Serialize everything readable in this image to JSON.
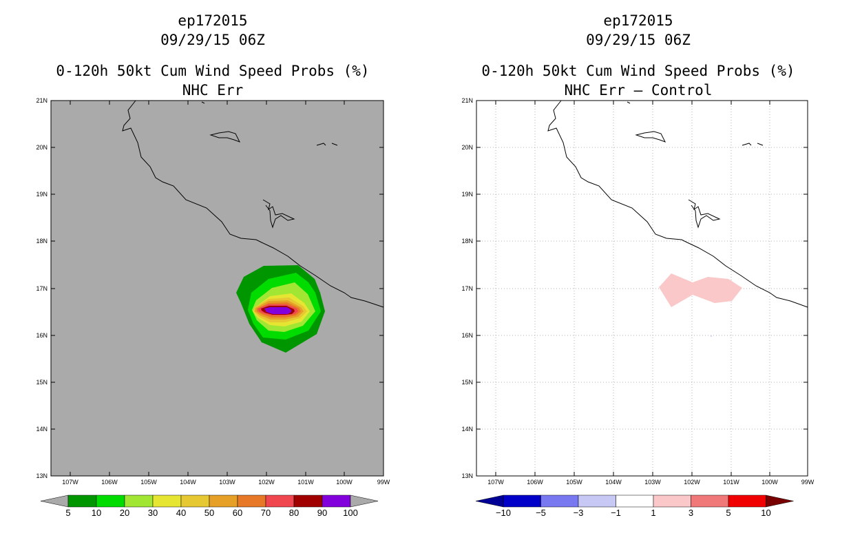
{
  "left_panel": {
    "storm_id": "ep172015",
    "datetime": "09/29/15 06Z",
    "title": "0-120h 50kt Cum Wind Speed Probs (%)",
    "subtitle": "NHC Err",
    "colorbar": {
      "labels": [
        "5",
        "10",
        "20",
        "30",
        "40",
        "50",
        "60",
        "70",
        "80",
        "90",
        "100"
      ],
      "colors": [
        "#009600",
        "#00dc00",
        "#a0e632",
        "#e6e632",
        "#e6c832",
        "#e6a028",
        "#e67828",
        "#f04650",
        "#a00000",
        "#8200dc"
      ],
      "under_color": "#aaaaaa",
      "over_color": "#aaaaaa"
    }
  },
  "right_panel": {
    "storm_id": "ep172015",
    "datetime": "09/29/15 06Z",
    "title": "0-120h 50kt Cum Wind Speed Probs (%)",
    "subtitle": "NHC Err – Control",
    "colorbar": {
      "labels": [
        "−10",
        "−5",
        "−3",
        "−1",
        "1",
        "3",
        "5",
        "10"
      ],
      "colors": [
        "#0000c8",
        "#7878f0",
        "#c8c8f5",
        "#ffffff",
        "#fac8c8",
        "#f07878",
        "#f00000"
      ],
      "under_color": "#000096",
      "over_color": "#780000"
    }
  },
  "axes": {
    "lon_labels": [
      "107W",
      "106W",
      "105W",
      "104W",
      "103W",
      "102W",
      "101W",
      "100W",
      "99W"
    ],
    "lat_labels": [
      "21N",
      "20N",
      "19N",
      "18N",
      "17N",
      "16N",
      "15N",
      "14N",
      "13N"
    ],
    "lon_range": [
      -107.75,
      -99
    ],
    "lat_range": [
      13,
      21
    ]
  },
  "colors": {
    "land_sea_background": "#aaaaaa",
    "diff_positive_fill": "#fac8c8"
  }
}
